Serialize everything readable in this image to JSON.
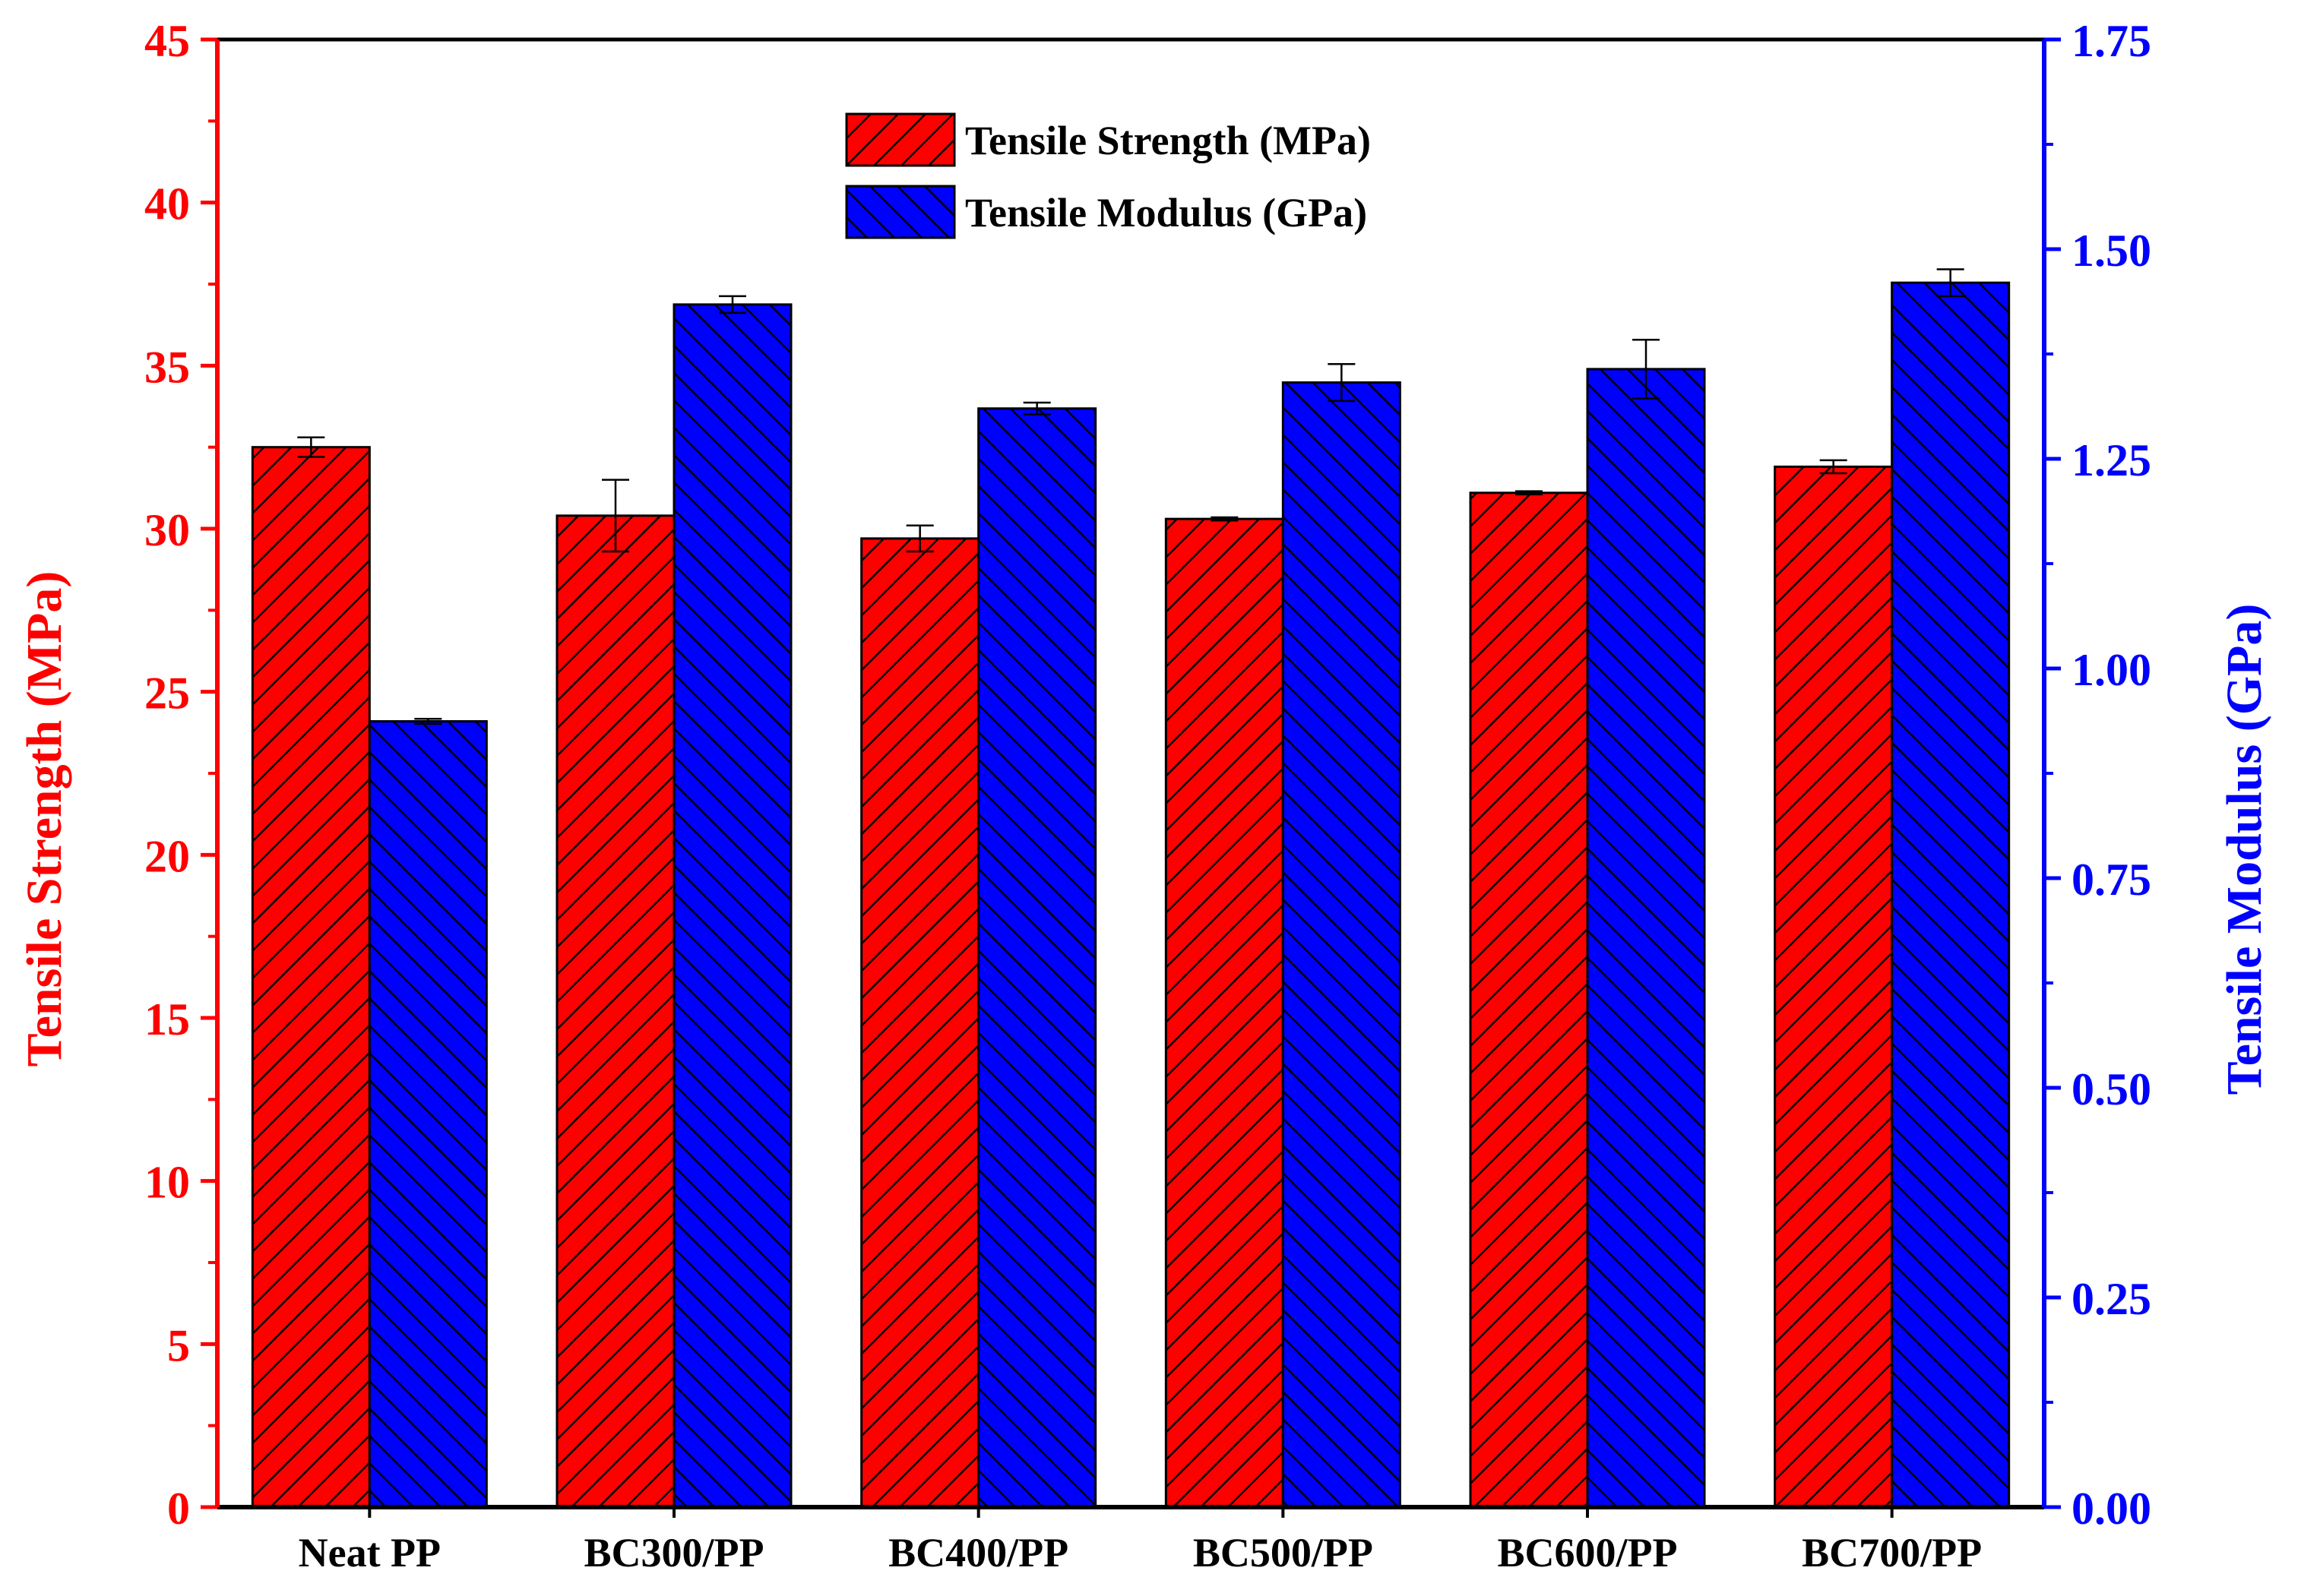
{
  "chart_data": {
    "type": "bar",
    "title": "",
    "categories": [
      "Neat PP",
      "BC300/PP",
      "BC400/PP",
      "BC500/PP",
      "BC600/PP",
      "BC700/PP"
    ],
    "series": [
      {
        "name": "Tensile Strength (MPa)",
        "axis": "left",
        "color": "#ff0000",
        "hatch": "forward-diagonal",
        "values": [
          32.5,
          30.4,
          29.7,
          30.3,
          31.1,
          31.9
        ],
        "errors": [
          0.3,
          1.1,
          0.4,
          0.05,
          0.05,
          0.2
        ]
      },
      {
        "name": "Tensile Modulus (GPa)",
        "axis": "right",
        "color": "#0000ff",
        "hatch": "backward-diagonal",
        "values": [
          0.937,
          1.434,
          1.31,
          1.341,
          1.357,
          1.46
        ],
        "errors": [
          0.003,
          0.01,
          0.007,
          0.022,
          0.035,
          0.016
        ]
      }
    ],
    "y_left": {
      "label": "Tensile Strength (MPa)",
      "color": "#ff0000",
      "range": [
        0,
        45
      ],
      "ticks": [
        "0",
        "5",
        "10",
        "15",
        "20",
        "25",
        "30",
        "35",
        "40",
        "45"
      ]
    },
    "y_right": {
      "label": "Tensile Modulus (GPa)",
      "color": "#0000ff",
      "range": [
        0,
        1.75
      ],
      "ticks": [
        "0.00",
        "0.25",
        "0.50",
        "0.75",
        "1.00",
        "1.25",
        "1.50",
        "1.75"
      ]
    },
    "xlabel": "",
    "grid": false,
    "legend_position": "top-center"
  }
}
